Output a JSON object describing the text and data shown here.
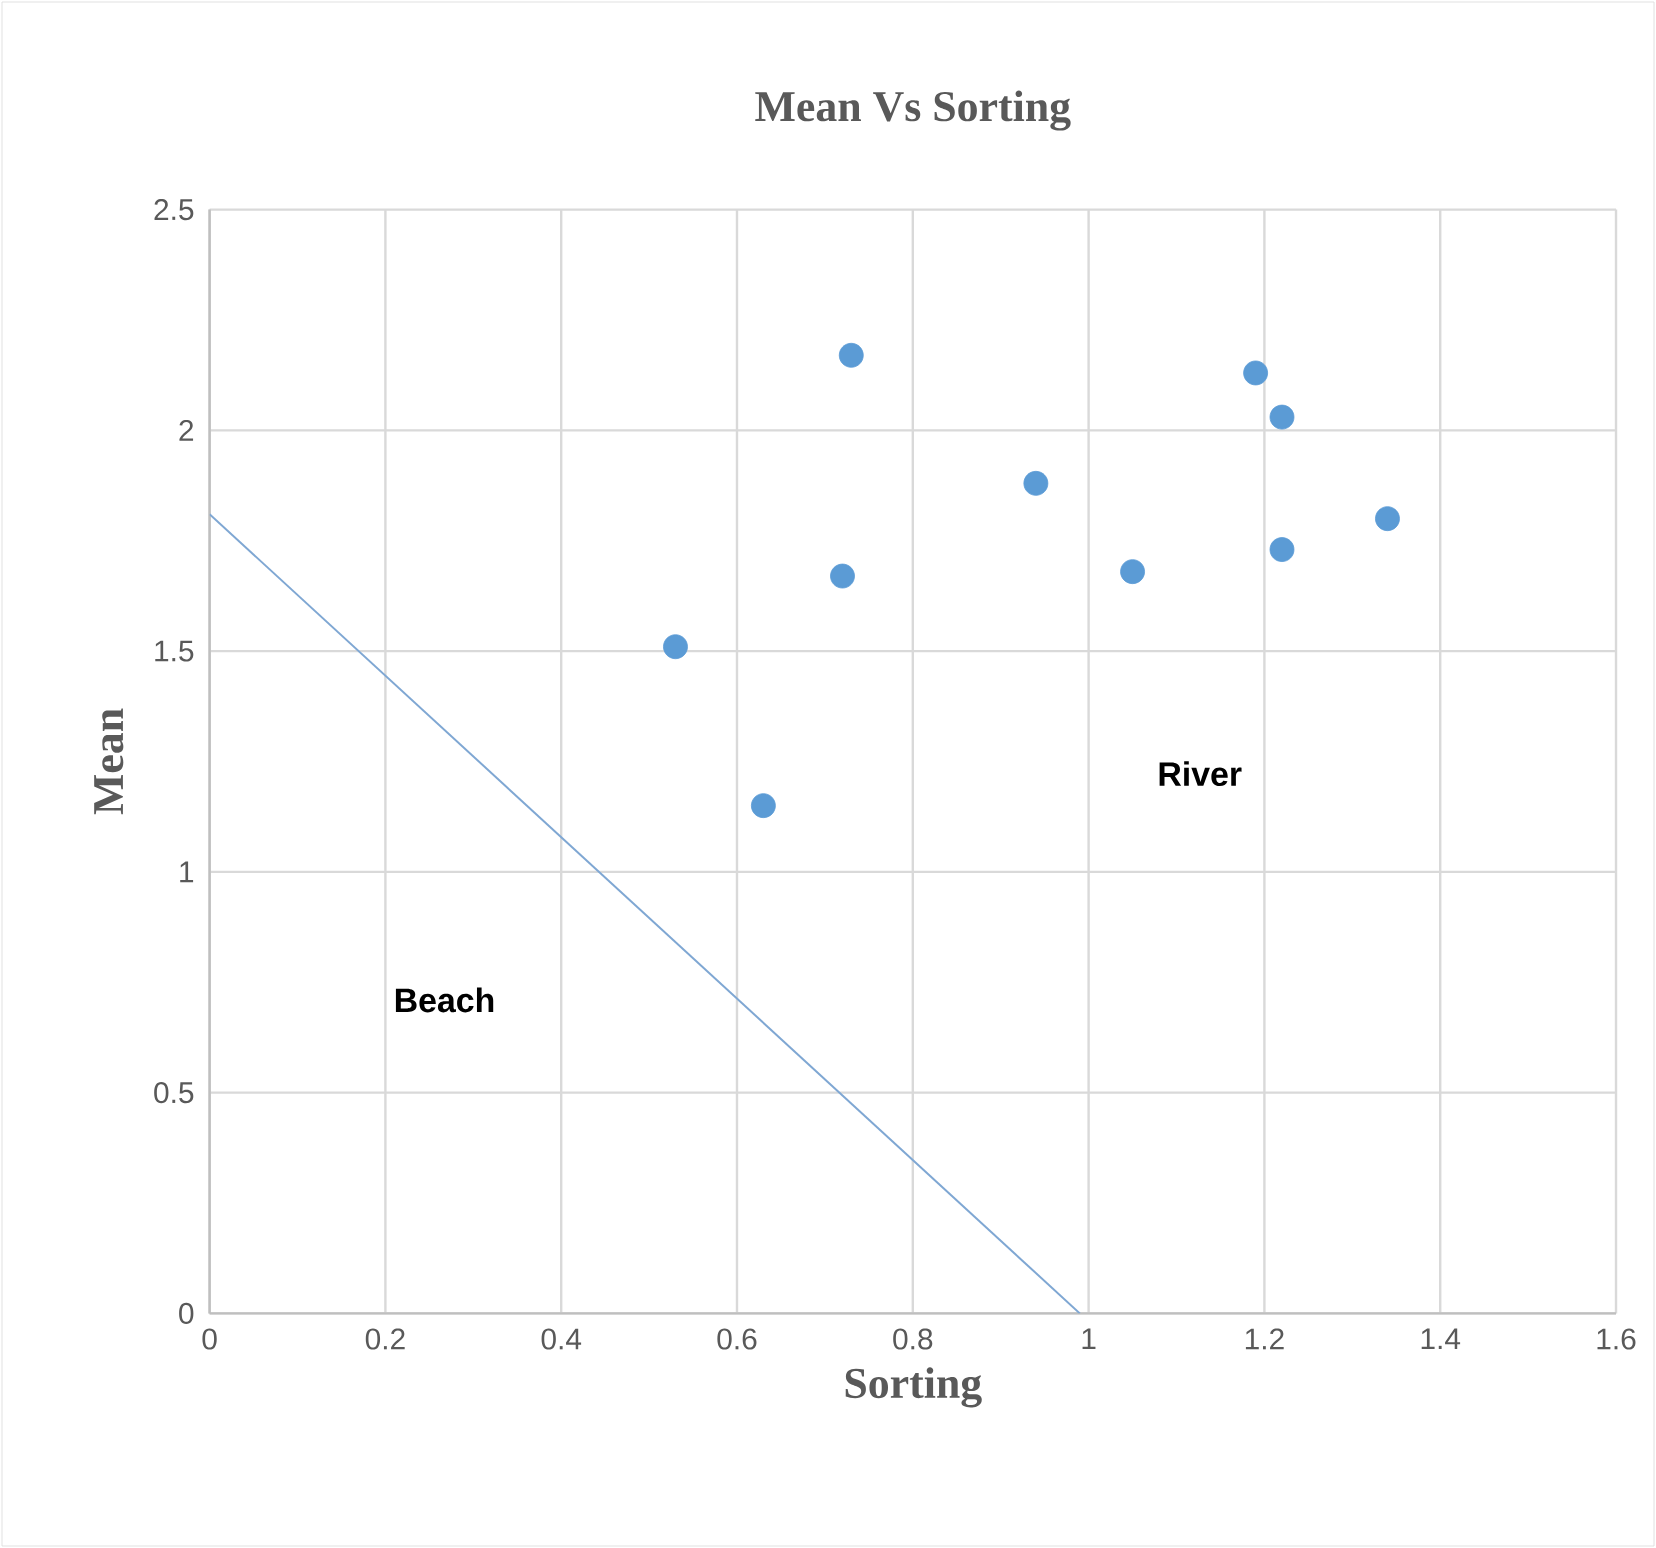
{
  "chart_data": {
    "type": "scatter",
    "title": "Mean Vs Sorting",
    "xlabel": "Sorting",
    "ylabel": "Mean",
    "annotations": [
      "Beach",
      "River"
    ],
    "series": [
      {
        "color": "#5b9bd5",
        "x": [
          0.53,
          0.63,
          0.72,
          0.73,
          0.94,
          1.05,
          1.19,
          1.22,
          1.22,
          1.34
        ],
        "values": [
          1.51,
          1.15,
          1.67,
          2.17,
          1.88,
          1.68,
          2.13,
          2.03,
          1.73,
          1.8
        ]
      },
      {
        "type": "line",
        "marker": "none",
        "color": "#7fa7d3",
        "x": [
          0,
          0.99
        ],
        "values": [
          1.81,
          0
        ]
      }
    ],
    "marker": "circle",
    "grid": true,
    "xlim": [
      0,
      1.6
    ],
    "xticks": [
      0,
      0.2,
      0.4,
      0.6,
      0.8,
      1,
      1.2,
      1.4,
      1.6
    ],
    "ylim": [
      0,
      2.5
    ],
    "yticks": [
      0,
      0.5,
      1,
      1.5,
      2,
      2.5
    ]
  }
}
